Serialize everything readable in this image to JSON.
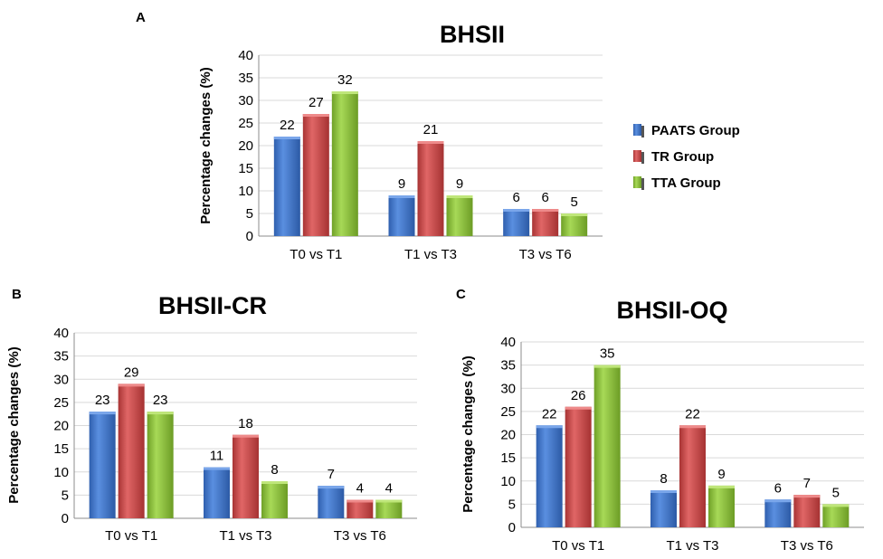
{
  "legend": {
    "entries": [
      {
        "name": "PAATS Group",
        "color": "#3f74c9"
      },
      {
        "name": "TR Group",
        "color": "#c94a4a"
      },
      {
        "name": "TTA Group",
        "color": "#8dc23b"
      }
    ]
  },
  "chart_data": [
    {
      "panel": "A",
      "type": "bar",
      "title": "BHSII",
      "ylabel": "Percentage changes (%)",
      "xlabel": "",
      "ylim": [
        0,
        40
      ],
      "yticks": [
        0,
        5,
        10,
        15,
        20,
        25,
        30,
        35,
        40
      ],
      "grid": true,
      "categories": [
        "T0 vs T1",
        "T1 vs T3",
        "T3 vs T6"
      ],
      "series": [
        {
          "name": "PAATS Group",
          "values": [
            22,
            9,
            6
          ],
          "labels": [
            "22",
            "9",
            "6"
          ]
        },
        {
          "name": "TR Group",
          "values": [
            27,
            21,
            6
          ],
          "labels": [
            "27",
            "21",
            "6"
          ]
        },
        {
          "name": "TTA Group",
          "values": [
            32,
            9,
            5
          ],
          "labels": [
            "32",
            "9",
            "5"
          ]
        }
      ]
    },
    {
      "panel": "B",
      "type": "bar",
      "title": "BHSII-CR",
      "ylabel": "Percentage changes (%)",
      "xlabel": "",
      "ylim": [
        0,
        40
      ],
      "yticks": [
        0,
        5,
        10,
        15,
        20,
        25,
        30,
        35,
        40
      ],
      "grid": true,
      "categories": [
        "T0 vs T1",
        "T1 vs T3",
        "T3 vs T6"
      ],
      "series": [
        {
          "name": "PAATS Group",
          "values": [
            23,
            11,
            7
          ],
          "labels": [
            "23",
            "11",
            "7"
          ]
        },
        {
          "name": "TR Group",
          "values": [
            29,
            18,
            4
          ],
          "labels": [
            "29",
            "18",
            "4"
          ]
        },
        {
          "name": "TTA Group",
          "values": [
            23,
            8,
            4
          ],
          "labels": [
            "23",
            "8",
            "4"
          ]
        }
      ]
    },
    {
      "panel": "C",
      "type": "bar",
      "title": "BHSII-OQ",
      "ylabel": "Percentage changes (%)",
      "xlabel": "",
      "ylim": [
        0,
        40
      ],
      "yticks": [
        0,
        5,
        10,
        15,
        20,
        25,
        30,
        35,
        40
      ],
      "grid": true,
      "categories": [
        "T0 vs T1",
        "T1 vs T3",
        "T3 vs T6"
      ],
      "series": [
        {
          "name": "PAATS Group",
          "values": [
            22,
            8,
            6
          ],
          "labels": [
            "22",
            "8",
            "6"
          ]
        },
        {
          "name": "TR Group",
          "values": [
            26,
            22,
            7
          ],
          "labels": [
            "26",
            "22",
            "7"
          ]
        },
        {
          "name": "TTA Group",
          "values": [
            35,
            9,
            5
          ],
          "labels": [
            "35",
            "9",
            "5"
          ]
        }
      ]
    }
  ]
}
